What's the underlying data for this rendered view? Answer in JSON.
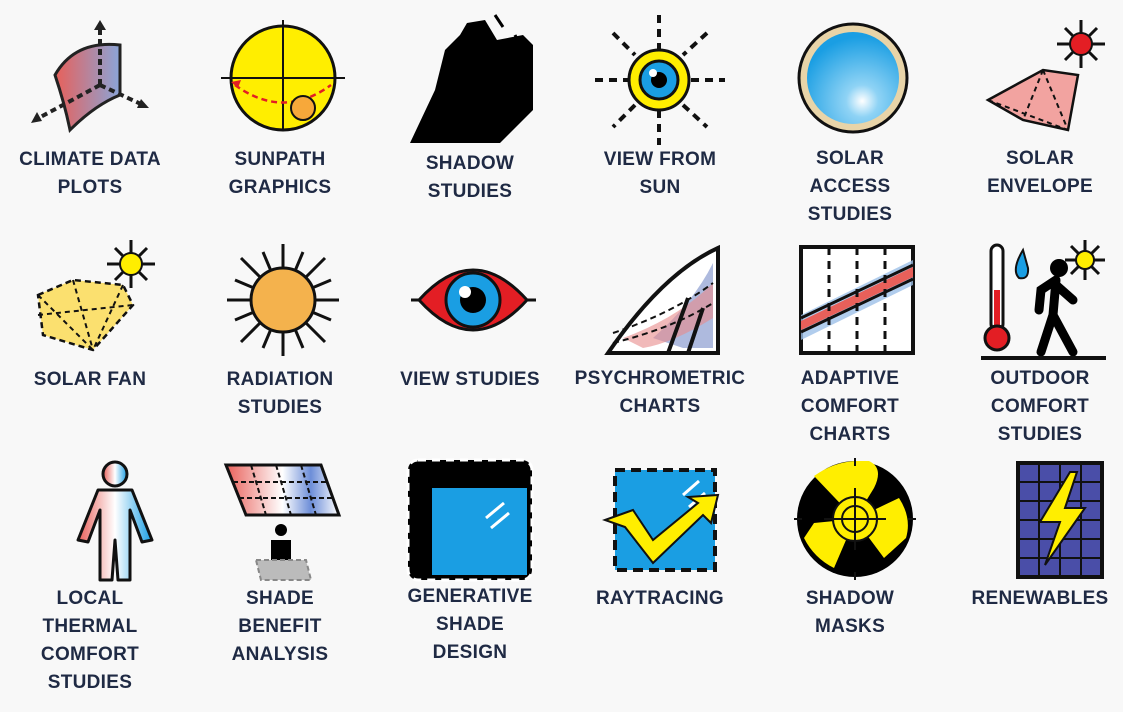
{
  "tools": [
    {
      "id": "climate-data-plots",
      "label": "CLIMATE DATA\nPLOTS",
      "icon": "climate-data-plot-icon"
    },
    {
      "id": "sunpath-graphics",
      "label": "SUNPATH\nGRAPHICS",
      "icon": "sunpath-icon"
    },
    {
      "id": "shadow-studies",
      "label": "SHADOW\nSTUDIES",
      "icon": "shadow-building-icon"
    },
    {
      "id": "view-from-sun",
      "label": "VIEW FROM\nSUN",
      "icon": "sun-eye-icon"
    },
    {
      "id": "solar-access-studies",
      "label": "SOLAR\nACCESS\nSTUDIES",
      "icon": "sky-dome-icon"
    },
    {
      "id": "solar-envelope",
      "label": "SOLAR\nENVELOPE",
      "icon": "solar-envelope-icon"
    },
    {
      "id": "solar-fan",
      "label": "SOLAR FAN",
      "icon": "solar-fan-icon"
    },
    {
      "id": "radiation-studies",
      "label": "RADIATION\nSTUDIES",
      "icon": "radiating-sun-icon"
    },
    {
      "id": "view-studies",
      "label": "VIEW STUDIES",
      "icon": "eye-icon"
    },
    {
      "id": "psychrometric-charts",
      "label": "PSYCHROMETRIC\nCHARTS",
      "icon": "psychrometric-chart-icon"
    },
    {
      "id": "adaptive-comfort-charts",
      "label": "ADAPTIVE\nCOMFORT\nCHARTS",
      "icon": "adaptive-chart-icon"
    },
    {
      "id": "outdoor-comfort-studies",
      "label": "OUTDOOR\nCOMFORT\nSTUDIES",
      "icon": "walking-person-icon"
    },
    {
      "id": "local-thermal-comfort-studies",
      "label": "LOCAL\nTHERMAL\nCOMFORT\nSTUDIES",
      "icon": "thermal-body-icon"
    },
    {
      "id": "shade-benefit-analysis",
      "label": "SHADE\nBENEFIT\nANALYSIS",
      "icon": "shade-canopy-icon"
    },
    {
      "id": "generative-shade-design",
      "label": "GENERATIVE\nSHADE\nDESIGN",
      "icon": "window-shade-icon"
    },
    {
      "id": "raytracing",
      "label": "RAYTRACING",
      "icon": "raytrace-icon"
    },
    {
      "id": "shadow-masks",
      "label": "SHADOW\nMASKS",
      "icon": "shadow-mask-icon"
    },
    {
      "id": "renewables",
      "label": "RENEWABLES",
      "icon": "solar-panel-bolt-icon"
    }
  ],
  "colors": {
    "text": "#1f2a44",
    "sun": "#ffee00",
    "red": "#e31e24",
    "blue": "#1a9ee3",
    "black": "#000000"
  }
}
